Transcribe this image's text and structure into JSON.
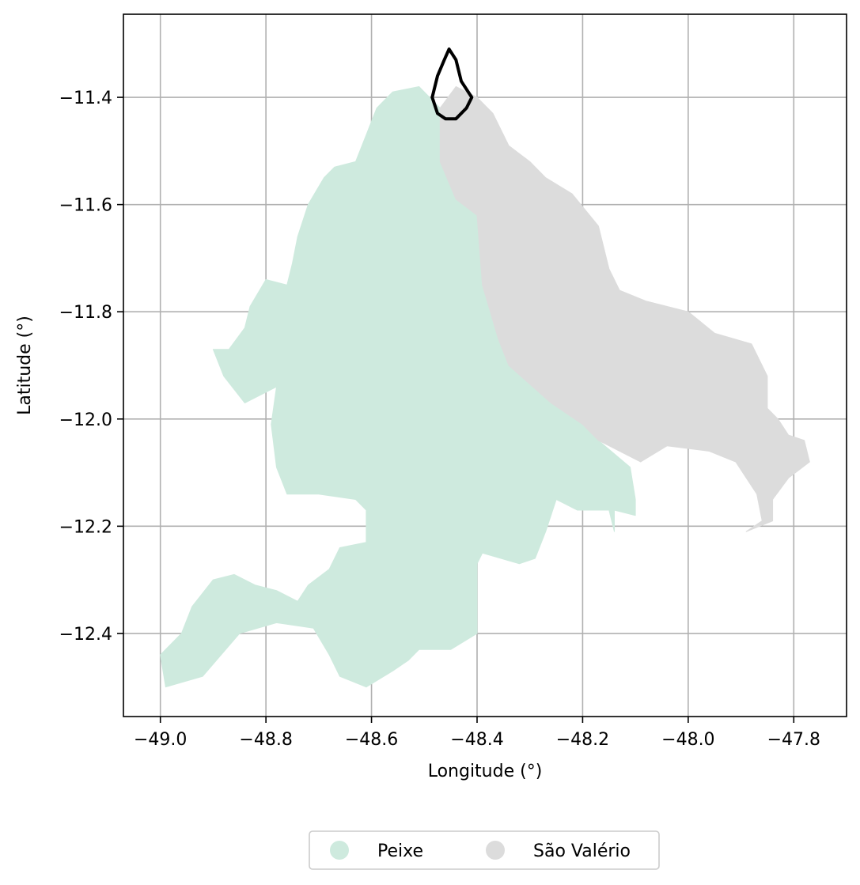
{
  "chart_data": {
    "type": "map",
    "xlabel": "Longitude (°)",
    "ylabel": "Latitude (°)",
    "xlim": [
      -49.07,
      -47.7
    ],
    "ylim": [
      -12.555,
      -11.245
    ],
    "xticks": [
      -49.0,
      -48.8,
      -48.6,
      -48.4,
      -48.2,
      -48.0,
      -47.8
    ],
    "yticks": [
      -11.4,
      -11.6,
      -11.8,
      -12.0,
      -12.2,
      -12.4
    ],
    "xtick_labels": [
      "−49.0",
      "−48.8",
      "−48.6",
      "−48.4",
      "−48.2",
      "−48.0",
      "−47.8"
    ],
    "ytick_labels": [
      "−11.4",
      "−11.6",
      "−11.8",
      "−12.0",
      "−12.2",
      "−12.4"
    ],
    "grid": true,
    "legend_position": "bottom-center",
    "regions": [
      {
        "name": "Peixe",
        "color": "#ceeade",
        "lonlat": [
          [
            -48.56,
            -11.39
          ],
          [
            -48.51,
            -11.38
          ],
          [
            -48.47,
            -11.42
          ],
          [
            -48.47,
            -11.52
          ],
          [
            -48.44,
            -11.59
          ],
          [
            -48.4,
            -11.62
          ],
          [
            -48.39,
            -11.75
          ],
          [
            -48.36,
            -11.85
          ],
          [
            -48.34,
            -11.9
          ],
          [
            -48.26,
            -11.97
          ],
          [
            -48.2,
            -12.01
          ],
          [
            -48.17,
            -12.04
          ],
          [
            -48.11,
            -12.09
          ],
          [
            -48.1,
            -12.15
          ],
          [
            -48.1,
            -12.18
          ],
          [
            -48.14,
            -12.17
          ],
          [
            -48.14,
            -12.21
          ],
          [
            -48.15,
            -12.17
          ],
          [
            -48.21,
            -12.17
          ],
          [
            -48.25,
            -12.15
          ],
          [
            -48.27,
            -12.21
          ],
          [
            -48.29,
            -12.26
          ],
          [
            -48.32,
            -12.27
          ],
          [
            -48.39,
            -12.25
          ],
          [
            -48.4,
            -12.27
          ],
          [
            -48.4,
            -12.35
          ],
          [
            -48.4,
            -12.4
          ],
          [
            -48.45,
            -12.43
          ],
          [
            -48.51,
            -12.43
          ],
          [
            -48.53,
            -12.45
          ],
          [
            -48.56,
            -12.47
          ],
          [
            -48.61,
            -12.5
          ],
          [
            -48.66,
            -12.48
          ],
          [
            -48.68,
            -12.44
          ],
          [
            -48.71,
            -12.39
          ],
          [
            -48.78,
            -12.38
          ],
          [
            -48.85,
            -12.4
          ],
          [
            -48.92,
            -12.48
          ],
          [
            -48.99,
            -12.5
          ],
          [
            -49.0,
            -12.44
          ],
          [
            -48.96,
            -12.4
          ],
          [
            -48.94,
            -12.35
          ],
          [
            -48.9,
            -12.3
          ],
          [
            -48.86,
            -12.29
          ],
          [
            -48.82,
            -12.31
          ],
          [
            -48.78,
            -12.32
          ],
          [
            -48.74,
            -12.34
          ],
          [
            -48.72,
            -12.31
          ],
          [
            -48.68,
            -12.28
          ],
          [
            -48.66,
            -12.24
          ],
          [
            -48.61,
            -12.23
          ],
          [
            -48.61,
            -12.17
          ],
          [
            -48.63,
            -12.15
          ],
          [
            -48.7,
            -12.14
          ],
          [
            -48.76,
            -12.14
          ],
          [
            -48.78,
            -12.09
          ],
          [
            -48.79,
            -12.01
          ],
          [
            -48.78,
            -11.94
          ],
          [
            -48.84,
            -11.97
          ],
          [
            -48.88,
            -11.92
          ],
          [
            -48.9,
            -11.87
          ],
          [
            -48.87,
            -11.87
          ],
          [
            -48.84,
            -11.83
          ],
          [
            -48.83,
            -11.79
          ],
          [
            -48.8,
            -11.74
          ],
          [
            -48.76,
            -11.75
          ],
          [
            -48.75,
            -11.71
          ],
          [
            -48.74,
            -11.66
          ],
          [
            -48.72,
            -11.6
          ],
          [
            -48.69,
            -11.55
          ],
          [
            -48.67,
            -11.53
          ],
          [
            -48.63,
            -11.52
          ],
          [
            -48.61,
            -11.47
          ],
          [
            -48.59,
            -11.42
          ]
        ]
      },
      {
        "name": "São Valério",
        "color": "#dcdcdc",
        "lonlat": [
          [
            -48.47,
            -11.42
          ],
          [
            -48.44,
            -11.38
          ],
          [
            -48.4,
            -11.4
          ],
          [
            -48.37,
            -11.43
          ],
          [
            -48.34,
            -11.49
          ],
          [
            -48.3,
            -11.52
          ],
          [
            -48.27,
            -11.55
          ],
          [
            -48.22,
            -11.58
          ],
          [
            -48.17,
            -11.64
          ],
          [
            -48.15,
            -11.72
          ],
          [
            -48.13,
            -11.76
          ],
          [
            -48.08,
            -11.78
          ],
          [
            -48.0,
            -11.8
          ],
          [
            -47.95,
            -11.84
          ],
          [
            -47.88,
            -11.86
          ],
          [
            -47.85,
            -11.92
          ],
          [
            -47.85,
            -11.98
          ],
          [
            -47.83,
            -12.0
          ],
          [
            -47.81,
            -12.03
          ],
          [
            -47.78,
            -12.04
          ],
          [
            -47.77,
            -12.08
          ],
          [
            -47.81,
            -12.11
          ],
          [
            -47.84,
            -12.15
          ],
          [
            -47.84,
            -12.19
          ],
          [
            -47.89,
            -12.21
          ],
          [
            -47.86,
            -12.19
          ],
          [
            -47.87,
            -12.14
          ],
          [
            -47.91,
            -12.08
          ],
          [
            -47.96,
            -12.06
          ],
          [
            -48.04,
            -12.05
          ],
          [
            -48.09,
            -12.08
          ],
          [
            -48.17,
            -12.04
          ],
          [
            -48.2,
            -12.01
          ],
          [
            -48.26,
            -11.97
          ],
          [
            -48.34,
            -11.9
          ],
          [
            -48.36,
            -11.85
          ],
          [
            -48.39,
            -11.75
          ],
          [
            -48.4,
            -11.62
          ],
          [
            -48.44,
            -11.59
          ],
          [
            -48.47,
            -11.52
          ]
        ]
      }
    ],
    "outline": {
      "color": "#000000",
      "lonlat": [
        [
          -48.453,
          -11.31
        ],
        [
          -48.44,
          -11.33
        ],
        [
          -48.43,
          -11.37
        ],
        [
          -48.41,
          -11.4
        ],
        [
          -48.42,
          -11.42
        ],
        [
          -48.44,
          -11.44
        ],
        [
          -48.46,
          -11.44
        ],
        [
          -48.475,
          -11.43
        ],
        [
          -48.485,
          -11.4
        ],
        [
          -48.475,
          -11.36
        ],
        [
          -48.462,
          -11.33
        ]
      ]
    },
    "series": [
      {
        "name": "Peixe",
        "color": "#ceeade"
      },
      {
        "name": "São Valério",
        "color": "#dcdcdc"
      }
    ]
  }
}
